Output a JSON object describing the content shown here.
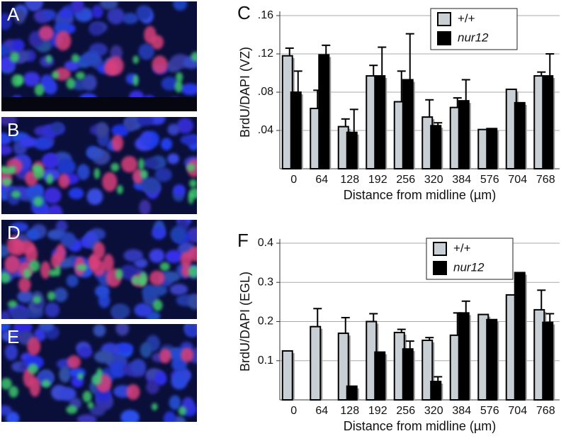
{
  "panels": [
    {
      "label": "A"
    },
    {
      "label": "B"
    },
    {
      "label": "D"
    },
    {
      "label": "E"
    }
  ],
  "chart_data": [
    {
      "type": "bar",
      "panel_label": "C",
      "y_label": "BrdU/DAPI (VZ)",
      "x_label": "Distance from midline (µm)",
      "categories": [
        "0",
        "64",
        "128",
        "192",
        "256",
        "320",
        "384",
        "576",
        "704",
        "768"
      ],
      "series": [
        {
          "name": "+/+",
          "color": "#c8d0d6",
          "values": [
            0.118,
            0.063,
            0.044,
            0.097,
            0.07,
            0.054,
            0.064,
            0.041,
            0.083,
            0.097
          ],
          "errors": [
            0.008,
            0.019,
            0.008,
            0.011,
            0.032,
            0.018,
            0.01,
            null,
            null,
            0.004
          ]
        },
        {
          "name": "nur12",
          "color": "#000000",
          "values": [
            0.08,
            0.119,
            0.038,
            0.097,
            0.093,
            0.045,
            0.071,
            0.042,
            0.069,
            0.097
          ],
          "errors": [
            0.022,
            0.01,
            0.024,
            0.03,
            0.048,
            0.003,
            0.022,
            null,
            null,
            0.023
          ]
        }
      ],
      "ylim": [
        0,
        0.16
      ],
      "yticks": [
        {
          "value": 0.04,
          "label": ".04"
        },
        {
          "value": 0.08,
          "label": ".08"
        },
        {
          "value": 0.12,
          "label": ".12"
        },
        {
          "value": 0.16,
          "label": ".16"
        }
      ],
      "grid": true
    },
    {
      "type": "bar",
      "panel_label": "F",
      "y_label": "BrdU/DAPI (EGL)",
      "x_label": "Distance from midline (µm)",
      "categories": [
        "0",
        "64",
        "128",
        "192",
        "256",
        "320",
        "384",
        "576",
        "704",
        "768"
      ],
      "series": [
        {
          "name": "+/+",
          "color": "#c8d0d6",
          "values": [
            0.125,
            0.187,
            0.17,
            0.2,
            0.172,
            0.152,
            0.165,
            0.218,
            0.268,
            0.23
          ],
          "errors": [
            null,
            0.046,
            0.04,
            0.02,
            0.008,
            0.007,
            0.057,
            null,
            null,
            0.05
          ]
        },
        {
          "name": "nur12",
          "color": "#000000",
          "values": [
            null,
            null,
            0.035,
            0.122,
            0.13,
            0.047,
            0.222,
            0.205,
            0.325,
            0.198
          ],
          "errors": [
            null,
            null,
            null,
            null,
            0.02,
            0.012,
            0.03,
            null,
            null,
            0.022
          ]
        }
      ],
      "ylim": [
        0,
        0.4
      ],
      "yticks": [
        0.1,
        0.2,
        0.3,
        0.4
      ],
      "grid": true
    }
  ]
}
